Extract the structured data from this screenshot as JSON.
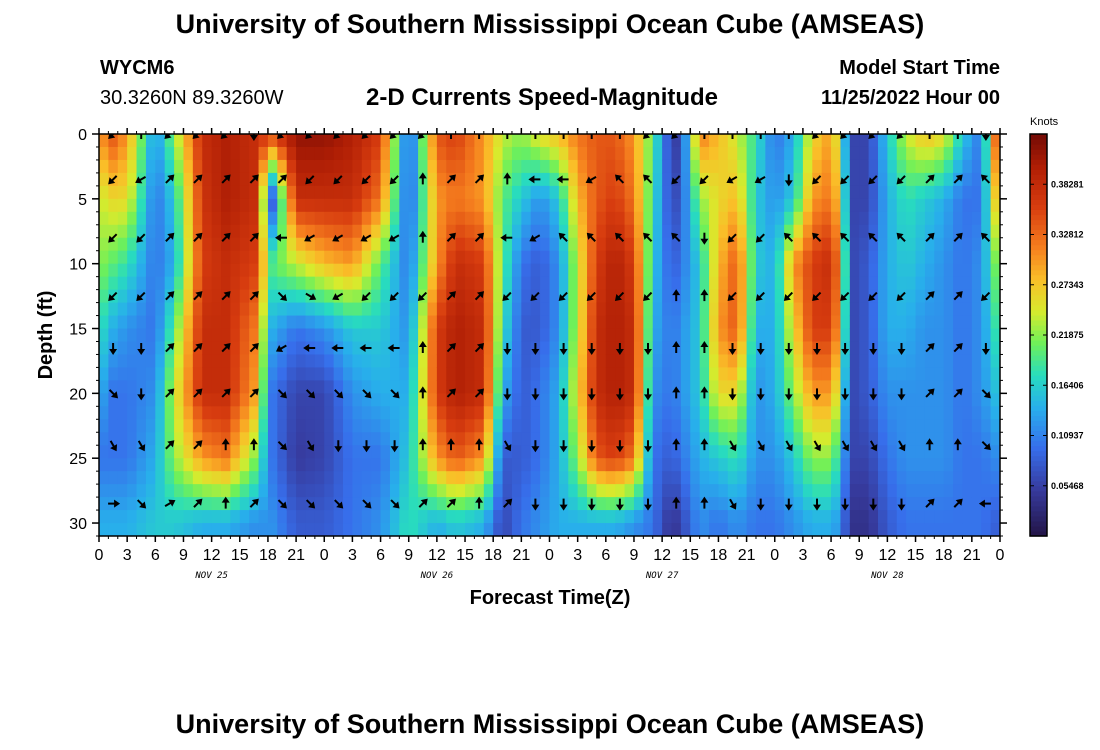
{
  "header": {
    "title": "University of Southern Mississippi Ocean Cube (AMSEAS)",
    "station_id": "WYCM6",
    "coordinates": "30.3260N  89.3260W",
    "chart_title": "2-D Currents Speed-Magnitude",
    "model_start_label": "Model Start Time",
    "model_start_value": "11/25/2022 Hour 00"
  },
  "footer": {
    "title": "University of Southern Mississippi Ocean Cube (AMSEAS)"
  },
  "chart_data": {
    "type": "heatmap",
    "xlabel": "Forecast Time(Z)",
    "ylabel": "Depth (ft)",
    "x_range": [
      0,
      96
    ],
    "y_range": [
      0,
      31
    ],
    "x_ticks": [
      0,
      3,
      6,
      9,
      12,
      15,
      18,
      21,
      24,
      27,
      30,
      33,
      36,
      39,
      42,
      45,
      48,
      51,
      54,
      57,
      60,
      63,
      66,
      69,
      72,
      75,
      78,
      81,
      84,
      87,
      90,
      93,
      96
    ],
    "x_tick_labels": [
      "0",
      "3",
      "6",
      "9",
      "12",
      "15",
      "18",
      "21",
      "0",
      "3",
      "6",
      "9",
      "12",
      "15",
      "18",
      "21",
      "0",
      "3",
      "6",
      "9",
      "12",
      "15",
      "18",
      "21",
      "0",
      "3",
      "6",
      "9",
      "12",
      "15",
      "18",
      "21",
      "0"
    ],
    "day_labels": [
      {
        "text": "NOV 25",
        "hour": 12
      },
      {
        "text": "NOV 26",
        "hour": 36
      },
      {
        "text": "NOV 27",
        "hour": 60
      },
      {
        "text": "NOV 28",
        "hour": 84
      }
    ],
    "y_ticks": [
      0,
      5,
      10,
      15,
      20,
      25,
      30
    ],
    "y_tick_labels": [
      "0",
      "5",
      "10",
      "15",
      "20",
      "25",
      "30"
    ],
    "colorbar": {
      "unit": "Knots",
      "min": 0,
      "max": 0.4375,
      "tick_values": [
        0.05468,
        0.10937,
        0.16406,
        0.21875,
        0.27343,
        0.32812,
        0.38281
      ],
      "tick_labels": [
        "0.05468",
        "0.10937",
        "0.16406",
        "0.21875",
        "0.27343",
        "0.32812",
        "0.38281"
      ]
    },
    "speed_columns_hours": [
      0,
      1.5,
      3,
      6,
      8,
      11,
      13.5,
      16.5,
      18.5,
      21,
      24,
      27,
      30,
      33,
      36,
      38,
      41,
      43,
      45,
      47,
      49,
      51,
      53,
      55,
      57,
      59,
      61,
      62,
      64,
      66,
      68,
      70,
      72,
      74,
      76,
      78,
      79,
      80,
      82,
      84,
      86,
      88,
      90,
      92,
      94,
      96
    ],
    "speed_rows_depth_ft": [
      0,
      5,
      10,
      15,
      20,
      25,
      30
    ],
    "speed_knots": [
      [
        0.3,
        0.24,
        0.22,
        0.18,
        0.14,
        0.1,
        0.14
      ],
      [
        0.34,
        0.26,
        0.2,
        0.14,
        0.1,
        0.1,
        0.14
      ],
      [
        0.3,
        0.26,
        0.18,
        0.12,
        0.1,
        0.1,
        0.14
      ],
      [
        0.12,
        0.1,
        0.1,
        0.1,
        0.12,
        0.14,
        0.16
      ],
      [
        0.22,
        0.16,
        0.14,
        0.2,
        0.24,
        0.22,
        0.16
      ],
      [
        0.38,
        0.37,
        0.36,
        0.38,
        0.38,
        0.3,
        0.14
      ],
      [
        0.4,
        0.4,
        0.38,
        0.38,
        0.38,
        0.32,
        0.14
      ],
      [
        0.38,
        0.38,
        0.36,
        0.32,
        0.3,
        0.22,
        0.12
      ],
      [
        0.36,
        0.08,
        0.2,
        0.14,
        0.1,
        0.1,
        0.12
      ],
      [
        0.42,
        0.38,
        0.24,
        0.1,
        0.06,
        0.05,
        0.08
      ],
      [
        0.42,
        0.38,
        0.28,
        0.12,
        0.06,
        0.06,
        0.08
      ],
      [
        0.4,
        0.38,
        0.3,
        0.16,
        0.12,
        0.1,
        0.1
      ],
      [
        0.36,
        0.32,
        0.2,
        0.16,
        0.14,
        0.1,
        0.12
      ],
      [
        0.08,
        0.08,
        0.1,
        0.12,
        0.14,
        0.16,
        0.18
      ],
      [
        0.34,
        0.3,
        0.3,
        0.36,
        0.36,
        0.3,
        0.14
      ],
      [
        0.36,
        0.32,
        0.38,
        0.4,
        0.4,
        0.34,
        0.16
      ],
      [
        0.3,
        0.3,
        0.36,
        0.38,
        0.38,
        0.3,
        0.14
      ],
      [
        0.24,
        0.2,
        0.2,
        0.18,
        0.14,
        0.08,
        0.06
      ],
      [
        0.22,
        0.16,
        0.1,
        0.08,
        0.08,
        0.08,
        0.1
      ],
      [
        0.26,
        0.12,
        0.08,
        0.08,
        0.1,
        0.1,
        0.12
      ],
      [
        0.28,
        0.16,
        0.12,
        0.12,
        0.14,
        0.14,
        0.14
      ],
      [
        0.32,
        0.28,
        0.24,
        0.24,
        0.26,
        0.22,
        0.14
      ],
      [
        0.34,
        0.34,
        0.36,
        0.38,
        0.38,
        0.34,
        0.14
      ],
      [
        0.34,
        0.36,
        0.4,
        0.4,
        0.4,
        0.36,
        0.14
      ],
      [
        0.3,
        0.32,
        0.36,
        0.38,
        0.38,
        0.32,
        0.12
      ],
      [
        0.2,
        0.18,
        0.16,
        0.14,
        0.12,
        0.1,
        0.1
      ],
      [
        0.05,
        0.06,
        0.08,
        0.1,
        0.1,
        0.08,
        0.04
      ],
      [
        0.06,
        0.08,
        0.1,
        0.12,
        0.12,
        0.1,
        0.06
      ],
      [
        0.32,
        0.22,
        0.16,
        0.16,
        0.16,
        0.14,
        0.12
      ],
      [
        0.28,
        0.26,
        0.28,
        0.3,
        0.26,
        0.16,
        0.1
      ],
      [
        0.24,
        0.28,
        0.34,
        0.34,
        0.26,
        0.18,
        0.12
      ],
      [
        0.18,
        0.16,
        0.16,
        0.14,
        0.12,
        0.12,
        0.1
      ],
      [
        0.1,
        0.12,
        0.14,
        0.14,
        0.14,
        0.12,
        0.1
      ],
      [
        0.14,
        0.16,
        0.3,
        0.26,
        0.22,
        0.16,
        0.12
      ],
      [
        0.26,
        0.3,
        0.36,
        0.36,
        0.3,
        0.22,
        0.14
      ],
      [
        0.3,
        0.32,
        0.38,
        0.36,
        0.3,
        0.22,
        0.14
      ],
      [
        0.22,
        0.26,
        0.3,
        0.28,
        0.22,
        0.16,
        0.12
      ],
      [
        0.06,
        0.06,
        0.06,
        0.06,
        0.06,
        0.06,
        0.04
      ],
      [
        0.06,
        0.06,
        0.08,
        0.08,
        0.08,
        0.06,
        0.04
      ],
      [
        0.16,
        0.14,
        0.14,
        0.14,
        0.12,
        0.1,
        0.08
      ],
      [
        0.24,
        0.18,
        0.16,
        0.14,
        0.12,
        0.12,
        0.1
      ],
      [
        0.28,
        0.16,
        0.14,
        0.12,
        0.12,
        0.12,
        0.1
      ],
      [
        0.26,
        0.14,
        0.12,
        0.12,
        0.12,
        0.12,
        0.1
      ],
      [
        0.16,
        0.1,
        0.1,
        0.1,
        0.1,
        0.1,
        0.1
      ],
      [
        0.1,
        0.1,
        0.12,
        0.12,
        0.12,
        0.1,
        0.1
      ],
      [
        0.4,
        0.32,
        0.24,
        0.2,
        0.16,
        0.12,
        0.08
      ]
    ],
    "vector_rows_depth_ft": [
      0,
      3.5,
      8,
      12.5,
      16.5,
      20,
      24,
      28.5
    ],
    "vector_hours": [
      1.5,
      4.5,
      7.5,
      10.5,
      13.5,
      16.5,
      19.5,
      22.5,
      25.5,
      28.5,
      31.5,
      34.5,
      37.5,
      40.5,
      43.5,
      46.5,
      49.5,
      52.5,
      55.5,
      58.5,
      61.5,
      64.5,
      67.5,
      70.5,
      73.5,
      76.5,
      79.5,
      82.5,
      85.5,
      88.5,
      91.5,
      94.5
    ],
    "vector_directions_deg": [
      [
        225,
        0,
        225,
        225,
        225,
        180,
        225,
        225,
        225,
        225,
        225,
        225,
        0,
        0,
        0,
        0,
        0,
        0,
        0,
        225,
        225,
        0,
        0,
        0,
        0,
        225,
        225,
        225,
        225,
        0,
        0,
        180
      ],
      [
        225,
        240,
        45,
        45,
        45,
        45,
        45,
        225,
        225,
        225,
        225,
        0,
        45,
        45,
        0,
        270,
        270,
        240,
        315,
        315,
        225,
        225,
        240,
        240,
        180,
        225,
        225,
        225,
        225,
        45,
        45,
        315
      ],
      [
        225,
        225,
        45,
        45,
        45,
        45,
        270,
        240,
        240,
        240,
        240,
        0,
        45,
        45,
        270,
        240,
        315,
        315,
        315,
        315,
        315,
        180,
        225,
        225,
        315,
        315,
        315,
        315,
        315,
        45,
        45,
        315
      ],
      [
        225,
        225,
        45,
        45,
        45,
        45,
        135,
        120,
        240,
        225,
        225,
        225,
        45,
        45,
        225,
        225,
        225,
        225,
        225,
        225,
        0,
        0,
        225,
        225,
        225,
        225,
        225,
        225,
        225,
        45,
        45,
        225
      ],
      [
        180,
        180,
        45,
        45,
        45,
        45,
        240,
        270,
        270,
        270,
        270,
        0,
        45,
        45,
        180,
        180,
        180,
        180,
        180,
        180,
        0,
        0,
        180,
        180,
        180,
        180,
        180,
        180,
        180,
        45,
        45,
        180
      ],
      [
        135,
        180,
        45,
        45,
        45,
        45,
        135,
        135,
        135,
        135,
        135,
        0,
        45,
        45,
        180,
        180,
        180,
        180,
        180,
        180,
        0,
        0,
        180,
        180,
        180,
        180,
        180,
        180,
        180,
        45,
        45,
        135
      ],
      [
        150,
        150,
        45,
        45,
        0,
        0,
        135,
        150,
        180,
        180,
        180,
        0,
        0,
        0,
        150,
        180,
        180,
        180,
        180,
        180,
        0,
        0,
        150,
        150,
        150,
        150,
        150,
        150,
        150,
        0,
        0,
        135
      ],
      [
        90,
        135,
        60,
        45,
        0,
        45,
        135,
        135,
        135,
        135,
        135,
        45,
        45,
        0,
        45,
        180,
        180,
        180,
        180,
        180,
        0,
        0,
        150,
        180,
        180,
        180,
        180,
        180,
        180,
        45,
        45,
        270
      ]
    ]
  }
}
